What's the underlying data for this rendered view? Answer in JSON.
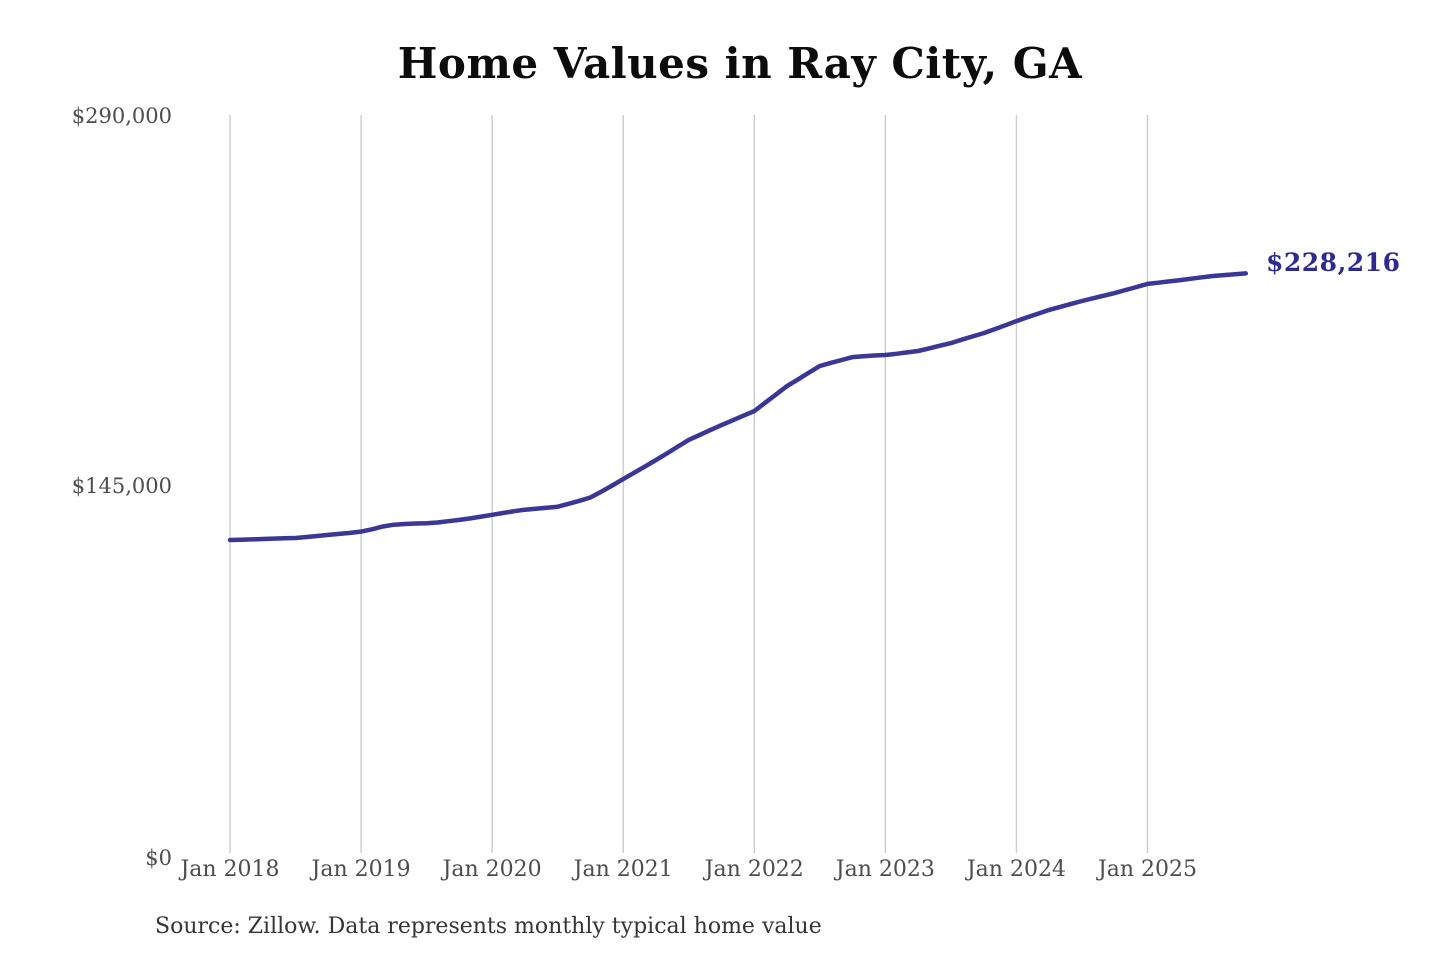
{
  "chart_data": {
    "type": "line",
    "title": "Home Values in Ray City, GA",
    "source_note": "Source: Zillow. Data represents monthly typical home value",
    "end_label": "$228,216",
    "end_value": 228216,
    "line_color": "#3a3797",
    "end_label_color": "#2d2b8d",
    "grid_color": "#cccccc",
    "axis_text_color": "#4d4d4d",
    "ylim": [
      0,
      290000
    ],
    "y_ticks": [
      {
        "value": 290000,
        "label": "$290,000"
      },
      {
        "value": 145000,
        "label": "$145,000"
      },
      {
        "value": 0,
        "label": "$0"
      }
    ],
    "x_tick_labels": [
      "Jan 2018",
      "Jan 2019",
      "Jan 2020",
      "Jan 2021",
      "Jan 2022",
      "Jan 2023",
      "Jan 2024",
      "Jan 2025"
    ],
    "grid": "vertical-only",
    "legend": "none",
    "series": [
      {
        "name": "Monthly typical home value",
        "start_month": "2018-01",
        "interval": "monthly",
        "end_month": "2025-10",
        "values": [
          123600,
          123700,
          123850,
          124000,
          124150,
          124300,
          124400,
          124800,
          125200,
          125600,
          126000,
          126400,
          126900,
          127800,
          128900,
          129600,
          129900,
          130100,
          130200,
          130500,
          131000,
          131500,
          132100,
          132800,
          133500,
          134200,
          134900,
          135500,
          135900,
          136300,
          136700,
          137800,
          139000,
          140300,
          142600,
          145000,
          147500,
          150000,
          152500,
          155000,
          157600,
          160250,
          162900,
          164850,
          166800,
          168700,
          170550,
          172400,
          174200,
          177500,
          180750,
          184000,
          186650,
          189300,
          191900,
          193100,
          194250,
          195400,
          195700,
          196000,
          196200,
          196700,
          197250,
          197800,
          198800,
          199850,
          200900,
          202200,
          203500,
          204800,
          206350,
          207900,
          209500,
          211000,
          212450,
          213900,
          215100,
          216250,
          217400,
          218450,
          219500,
          220500,
          221700,
          222900,
          224100,
          224600,
          225100,
          225600,
          226150,
          226700,
          227200,
          227550,
          227900,
          228216
        ]
      }
    ]
  }
}
